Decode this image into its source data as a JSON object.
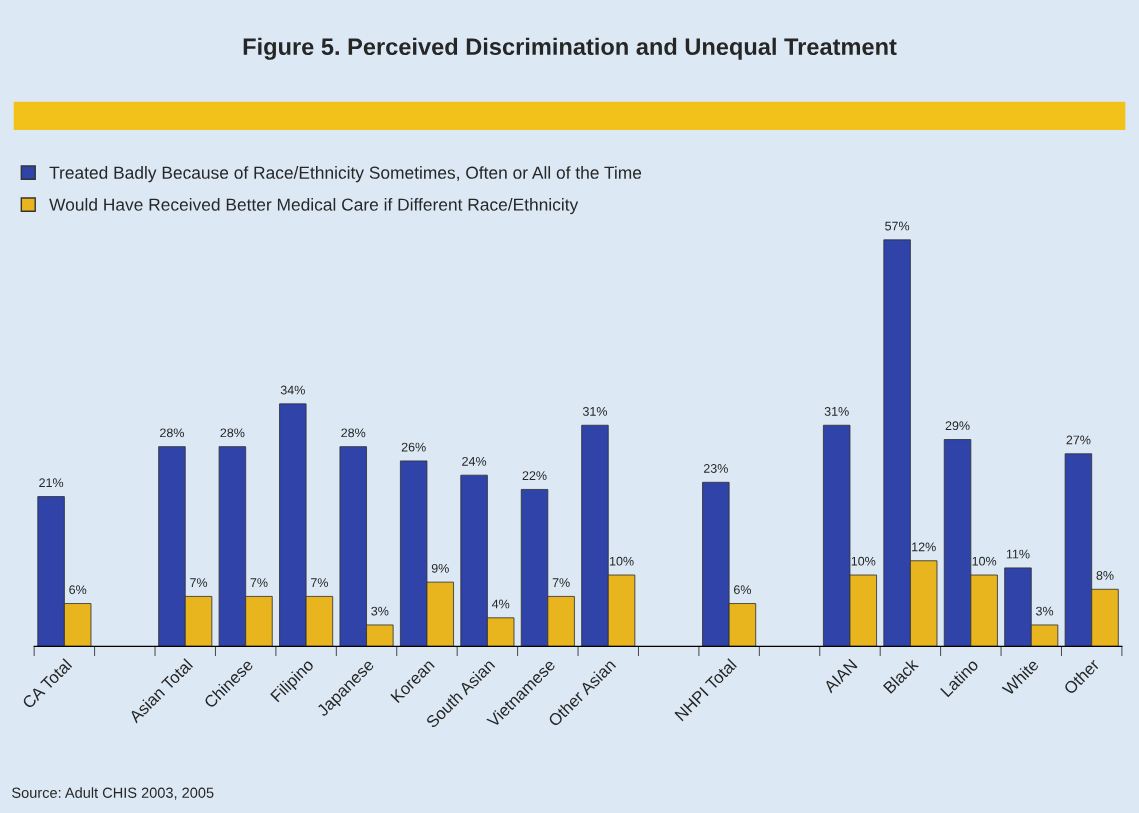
{
  "chart_data": {
    "type": "bar",
    "title": "Figure 5. Perceived Discrimination and Unequal Treatment",
    "categories": [
      "CA Total",
      null,
      "Asian Total",
      "Chinese",
      "Filipino",
      "Japanese",
      "Korean",
      "South Asian",
      "Vietnamese",
      "Other Asian",
      null,
      "NHPI Total",
      null,
      "AIAN",
      "Black",
      "Latino",
      "White",
      "Other"
    ],
    "series": [
      {
        "name": "Treated Badly Because of Race/Ethnicity Sometimes, Often or All of the Time",
        "color": "#2f43a8",
        "values": [
          21,
          null,
          28,
          28,
          34,
          28,
          26,
          24,
          22,
          31,
          null,
          23,
          null,
          31,
          57,
          29,
          11,
          27
        ],
        "value_labels": [
          "21%",
          null,
          "28%",
          "28%",
          "34%",
          "28%",
          "26%",
          "24%",
          "22%",
          "31%",
          null,
          "23%",
          null,
          "31%",
          "57%",
          "29%",
          "11%",
          "27%"
        ]
      },
      {
        "name": "Would Have Received Better Medical Care if Different Race/Ethnicity",
        "color": "#e8b51e",
        "values": [
          6,
          null,
          7,
          7,
          7,
          3,
          9,
          4,
          7,
          10,
          null,
          6,
          null,
          10,
          12,
          10,
          3,
          8
        ],
        "value_labels": [
          "6%",
          null,
          "7%",
          "7%",
          "7%",
          "3%",
          "9%",
          "4%",
          "7%",
          "10%",
          null,
          "6%",
          null,
          "10%",
          "12%",
          "10%",
          "3%",
          "8%"
        ]
      }
    ],
    "legend": "top left",
    "annotations": [
      "Source: Adult CHIS 2003, 2005"
    ]
  }
}
